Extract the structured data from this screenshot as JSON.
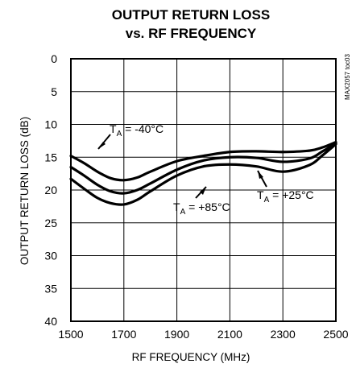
{
  "chart_data": {
    "type": "line",
    "title_line1": "OUTPUT RETURN LOSS",
    "title_line2": "vs. RF FREQUENCY",
    "xlabel": "RF FREQUENCY (MHz)",
    "ylabel": "OUTPUT RETURN LOSS (dB)",
    "figure_code": "MAX2057 toc03",
    "xlim": [
      1500,
      2500
    ],
    "ylim": [
      0,
      40
    ],
    "y_inverted": true,
    "grid": true,
    "x_ticks": [
      "1500",
      "1700",
      "1900",
      "2100",
      "2300",
      "2500"
    ],
    "y_ticks": [
      "0",
      "5",
      "10",
      "15",
      "20",
      "25",
      "30",
      "35",
      "40"
    ],
    "series": [
      {
        "name": "TA = -40°C",
        "label_main": "T",
        "label_sub": "A",
        "label_rest": " = -40°C",
        "x": [
          1500,
          1550,
          1600,
          1650,
          1700,
          1750,
          1800,
          1900,
          2000,
          2100,
          2200,
          2300,
          2400,
          2450,
          2500
        ],
        "y": [
          14.8,
          15.9,
          17.2,
          18.2,
          18.5,
          18.1,
          17.2,
          15.6,
          14.8,
          14.2,
          14.1,
          14.2,
          14.0,
          13.5,
          12.7
        ]
      },
      {
        "name": "TA = +25°C",
        "label_main": "T",
        "label_sub": "A",
        "label_rest": " = +25°C",
        "x": [
          1500,
          1550,
          1600,
          1650,
          1700,
          1750,
          1800,
          1900,
          2000,
          2100,
          2200,
          2300,
          2400,
          2450,
          2500
        ],
        "y": [
          16.5,
          17.8,
          19.2,
          20.2,
          20.5,
          20.0,
          19.0,
          16.9,
          15.5,
          15.0,
          15.1,
          15.7,
          15.2,
          14.1,
          12.9
        ]
      },
      {
        "name": "TA = +85°C",
        "label_main": "T",
        "label_sub": "A",
        "label_rest": " = +85°C",
        "x": [
          1500,
          1550,
          1600,
          1650,
          1700,
          1750,
          1800,
          1900,
          2000,
          2100,
          2200,
          2300,
          2400,
          2450,
          2500
        ],
        "y": [
          18.3,
          19.8,
          21.2,
          22.0,
          22.2,
          21.5,
          20.2,
          17.8,
          16.4,
          16.1,
          16.4,
          17.2,
          16.2,
          14.7,
          13.0
        ]
      }
    ]
  }
}
